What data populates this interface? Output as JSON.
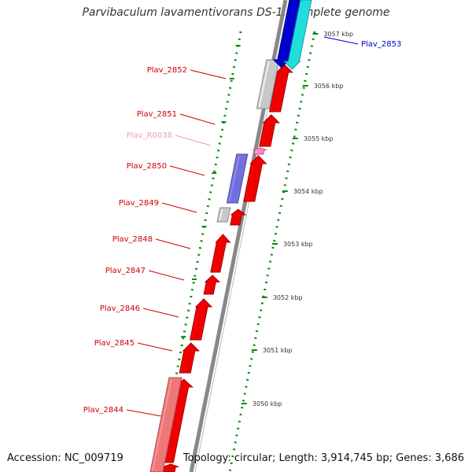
{
  "title": "Parvibaculum lavamentivorans DS-1, complete genome",
  "footer": {
    "accession": "Accession: NC_009719",
    "topology": "Topology: circular; Length: 3,914,745 bp; Genes: 3,686"
  },
  "colors": {
    "protein_gene": "#ee0000",
    "gene_label": "#cc0000",
    "rna_gene": "#ff88cc",
    "rna_label": "#ee99cc",
    "blue_gene": "#0000cc",
    "cyan_gene": "#22dddd",
    "purple_gene": "#7070dd",
    "gray_gene": "#c8c8c8",
    "salmon_gene": "#ee7777",
    "backbone": "#888888",
    "scale_ticks": "#118811",
    "label_text": "#333333"
  },
  "scale": {
    "ticks": [
      {
        "label": "3057 kbp",
        "kbp": 3057
      },
      {
        "label": "3056 kbp",
        "kbp": 3056
      },
      {
        "label": "3055 kbp",
        "kbp": 3055
      },
      {
        "label": "3054 kbp",
        "kbp": 3054
      },
      {
        "label": "3053 kbp",
        "kbp": 3053
      },
      {
        "label": "3052 kbp",
        "kbp": 3052
      },
      {
        "label": "3051 kbp",
        "kbp": 3051
      },
      {
        "label": "3050 kbp",
        "kbp": 3050
      }
    ]
  },
  "gene_labels": [
    {
      "text": "Plav_2853",
      "kind": "blue"
    },
    {
      "text": "Plav_2852",
      "kind": "protein"
    },
    {
      "text": "Plav_2851",
      "kind": "protein"
    },
    {
      "text": "Plav_R0038",
      "kind": "rna"
    },
    {
      "text": "Plav_2850",
      "kind": "protein"
    },
    {
      "text": "Plav_2849",
      "kind": "protein"
    },
    {
      "text": "Plav_2848",
      "kind": "protein"
    },
    {
      "text": "Plav_2847",
      "kind": "protein"
    },
    {
      "text": "Plav_2846",
      "kind": "protein"
    },
    {
      "text": "Plav_2845",
      "kind": "protein"
    },
    {
      "text": "Plav_2844",
      "kind": "protein"
    }
  ]
}
